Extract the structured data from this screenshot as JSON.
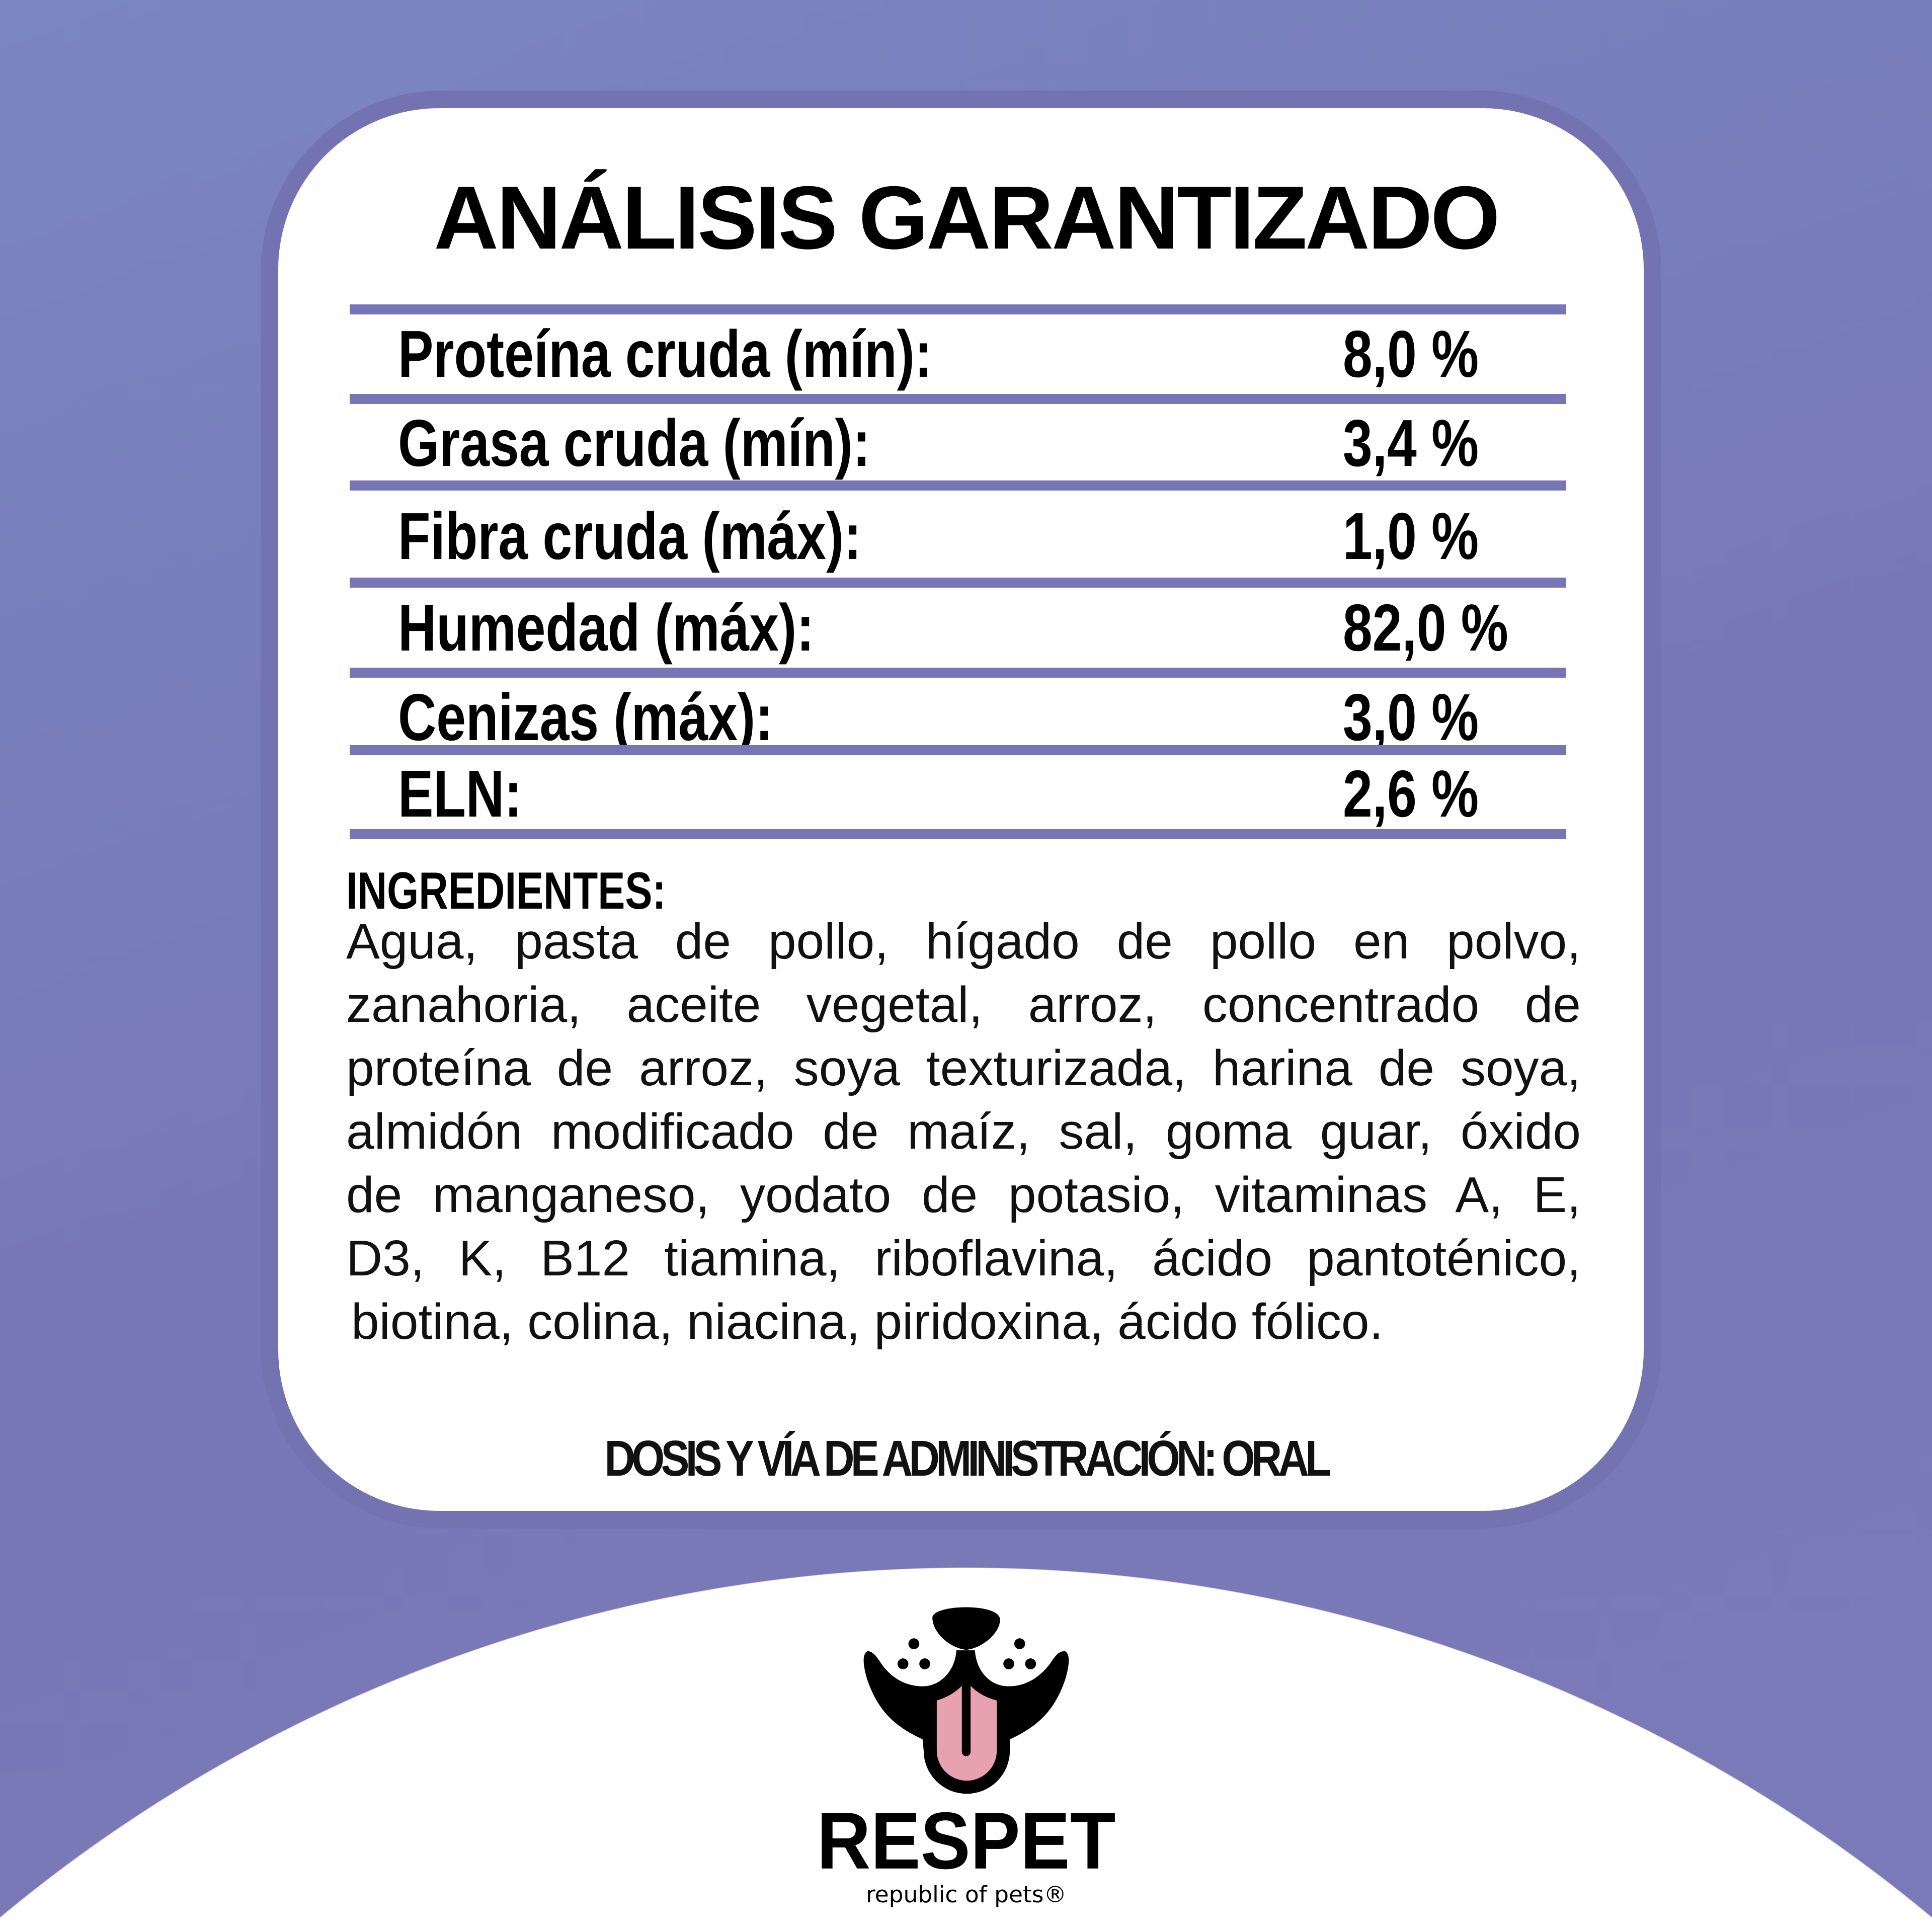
{
  "colors": {
    "background": "#7a80bc",
    "accent_rule": "#7676b6",
    "card": "#ffffff",
    "tongue": "#e8a1ae"
  },
  "title": "ANÁLISIS GARANTIZADO",
  "analysis": [
    {
      "label": "Proteína cruda (mín):",
      "value": "8,0 %"
    },
    {
      "label": "Grasa cruda (mín):",
      "value": "3,4 %"
    },
    {
      "label": "Fibra cruda (máx):",
      "value": "1,0 %"
    },
    {
      "label": "Humedad (máx):",
      "value": "82,0 %"
    },
    {
      "label": "Cenizas (máx):",
      "value": "3,0 %"
    },
    {
      "label": "ELN:",
      "value": "2,6 %"
    }
  ],
  "ingredients": {
    "heading": "INGREDIENTES:",
    "lines": [
      "Agua, pasta de pollo, hígado de pollo en polvo,",
      "zanahoria, aceite vegetal, arroz, concentrado de",
      "proteína de arroz, soya texturizada, harina de soya,",
      "almidón modificado de maíz, sal, goma guar, óxido",
      "de manganeso, yodato de potasio, vitaminas A, E,",
      "D3, K, B12 tiamina, riboflavina, ácido pantoténico,",
      "biotina, colina, niacina, piridoxina, ácido fólico."
    ]
  },
  "dosage": "DOSIS Y VÍA DE ADMINISTRACIÓN: ORAL",
  "brand": {
    "name": "RESPET",
    "tagline": "republic of pets®",
    "icon": "dog-face-tongue-logo"
  }
}
